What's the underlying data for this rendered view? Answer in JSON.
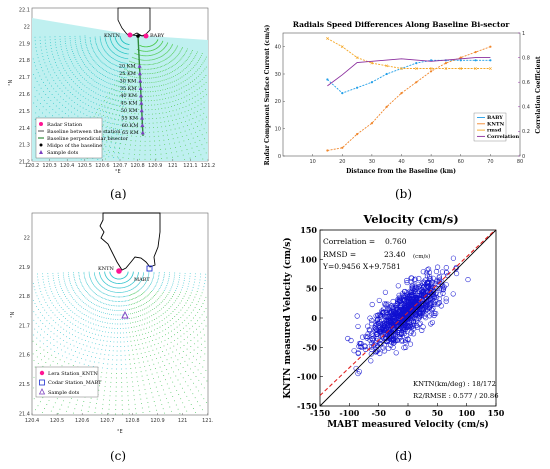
{
  "panels": {
    "a": {
      "label": "(a)",
      "stations": {
        "kntn": "KNTN",
        "baby": "BABY"
      },
      "distances": [
        "20 KM",
        "25 KM",
        "30 KM",
        "35 KM",
        "40 KM",
        "45 KM",
        "50 KM",
        "55 KM",
        "60 KM",
        "65 KM"
      ],
      "xticks": [
        "120.2",
        "120.3",
        "120.4",
        "120.5",
        "120.6",
        "120.7",
        "120.8",
        "120.9",
        "121",
        "121.1",
        "121.2"
      ],
      "yticks": [
        "22.1",
        "22",
        "21.9",
        "21.8",
        "21.7",
        "21.6",
        "21.5",
        "21.4",
        "21.3",
        "21.2"
      ],
      "xunit": "°E",
      "yunit": "°N",
      "legend": [
        "Radar Station",
        "Baseline between the station",
        "Baseline perpendicular bisector",
        "Midpo of the baseline",
        "Sample dots"
      ],
      "colors": {
        "ocean": "#27c4c4",
        "bisector": "#2e8b3a",
        "station": "#ff1493",
        "sample": "#7b3fbf"
      }
    },
    "b": {
      "label": "(b)",
      "chart_data": {
        "type": "line",
        "title": "Radials Speed Differences Along Baseline Bi-sector",
        "xlabel": "Distance from the Baseline (km)",
        "ylabel": "Radar Component Surface Current (cm/s)",
        "y2label": "Correlation Coefficient",
        "xlim": [
          0,
          80
        ],
        "ylim": [
          0,
          45
        ],
        "y2lim": [
          0,
          1
        ],
        "xticks": [
          10,
          20,
          30,
          40,
          50,
          60,
          70,
          80
        ],
        "yticks": [
          0,
          10,
          20,
          30,
          40
        ],
        "y2ticks": [
          0,
          0.2,
          0.4,
          0.6,
          0.8,
          1
        ],
        "legend": [
          "BABY",
          "KNTN",
          "rmsd",
          "Correlation"
        ],
        "legend_position": "bottom-right",
        "series": [
          {
            "name": "BABY",
            "axis": "left",
            "color": "#1f9ee8",
            "marker": "circle",
            "x": [
              15,
              20,
              25,
              30,
              35,
              40,
              45,
              50,
              55,
              60,
              65,
              70
            ],
            "values": [
              28,
              23,
              25,
              27,
              30,
              32,
              34,
              35,
              35,
              35,
              35,
              35
            ]
          },
          {
            "name": "KNTN",
            "axis": "left",
            "color": "#f0862b",
            "marker": "circle",
            "x": [
              15,
              20,
              25,
              30,
              35,
              40,
              45,
              50,
              55,
              60,
              65,
              70
            ],
            "values": [
              2,
              3,
              8,
              12,
              18,
              23,
              27,
              31,
              34,
              36,
              38,
              40
            ]
          },
          {
            "name": "rmsd",
            "axis": "left",
            "color": "#f5a623",
            "marker": "cross",
            "x": [
              15,
              20,
              25,
              30,
              35,
              40,
              45,
              50,
              55,
              60,
              65,
              70
            ],
            "values": [
              43,
              40,
              36,
              34,
              33,
              32,
              32,
              32,
              32,
              32,
              32,
              32
            ]
          },
          {
            "name": "Correlation",
            "axis": "right",
            "color": "#8b2e9e",
            "marker": "none",
            "x": [
              15,
              20,
              25,
              30,
              35,
              40,
              45,
              50,
              55,
              60,
              65,
              70
            ],
            "values": [
              0.57,
              0.66,
              0.76,
              0.77,
              0.78,
              0.79,
              0.78,
              0.77,
              0.78,
              0.79,
              0.8,
              0.8
            ]
          }
        ]
      }
    },
    "c": {
      "label": "(c)",
      "stations": {
        "kntn": "KNTN",
        "mabt": "MABT"
      },
      "xticks": [
        "120.4",
        "120.5",
        "120.6",
        "120.7",
        "120.8",
        "120.9",
        "121",
        "121."
      ],
      "yticks": [
        "22",
        "21.9",
        "21.8",
        "21.7",
        "21.6",
        "21.5",
        "21.4"
      ],
      "xunit": "°E",
      "yunit": "°N",
      "legend": [
        "Lera Station_KNTN",
        "Codar Station_MABT",
        "Sample dots"
      ]
    },
    "d": {
      "label": "(d)",
      "chart_data": {
        "type": "scatter",
        "title": "Velocity (cm/s)",
        "xlabel": "MABT measured Velocity (cm/s)",
        "ylabel": "KNTN measured Velocity (cm/s)",
        "xlim": [
          -150,
          150
        ],
        "ylim": [
          -150,
          150
        ],
        "xticks": [
          -150,
          -100,
          -50,
          0,
          50,
          100,
          150
        ],
        "yticks": [
          -150,
          -100,
          -50,
          0,
          50,
          100,
          150
        ],
        "marker": "open-circle",
        "marker_color": "#1010d0",
        "fit_line": {
          "slope": 0.9456,
          "intercept": 9.7581,
          "color": "#e02020",
          "style": "dashed"
        },
        "reference_line": {
          "slope": 1,
          "intercept": 0,
          "color": "#000000"
        },
        "annotations": {
          "correlation_label": "Correlation =",
          "correlation_value": "0.760",
          "rmsd_label": "RMSD =",
          "rmsd_value": "23.40",
          "rmsd_unit": "(cm/s)",
          "equation": "Y=0.9456 X+9.7581",
          "kntn_label": "KNTN(km/deg) : 18/172",
          "r2_label": "R2/RMSE : 0.577 /  20.86"
        },
        "point_cloud": {
          "count": 900,
          "center": [
            -5,
            0
          ],
          "spread": [
            32,
            30
          ],
          "correlation": 0.76
        }
      }
    }
  }
}
